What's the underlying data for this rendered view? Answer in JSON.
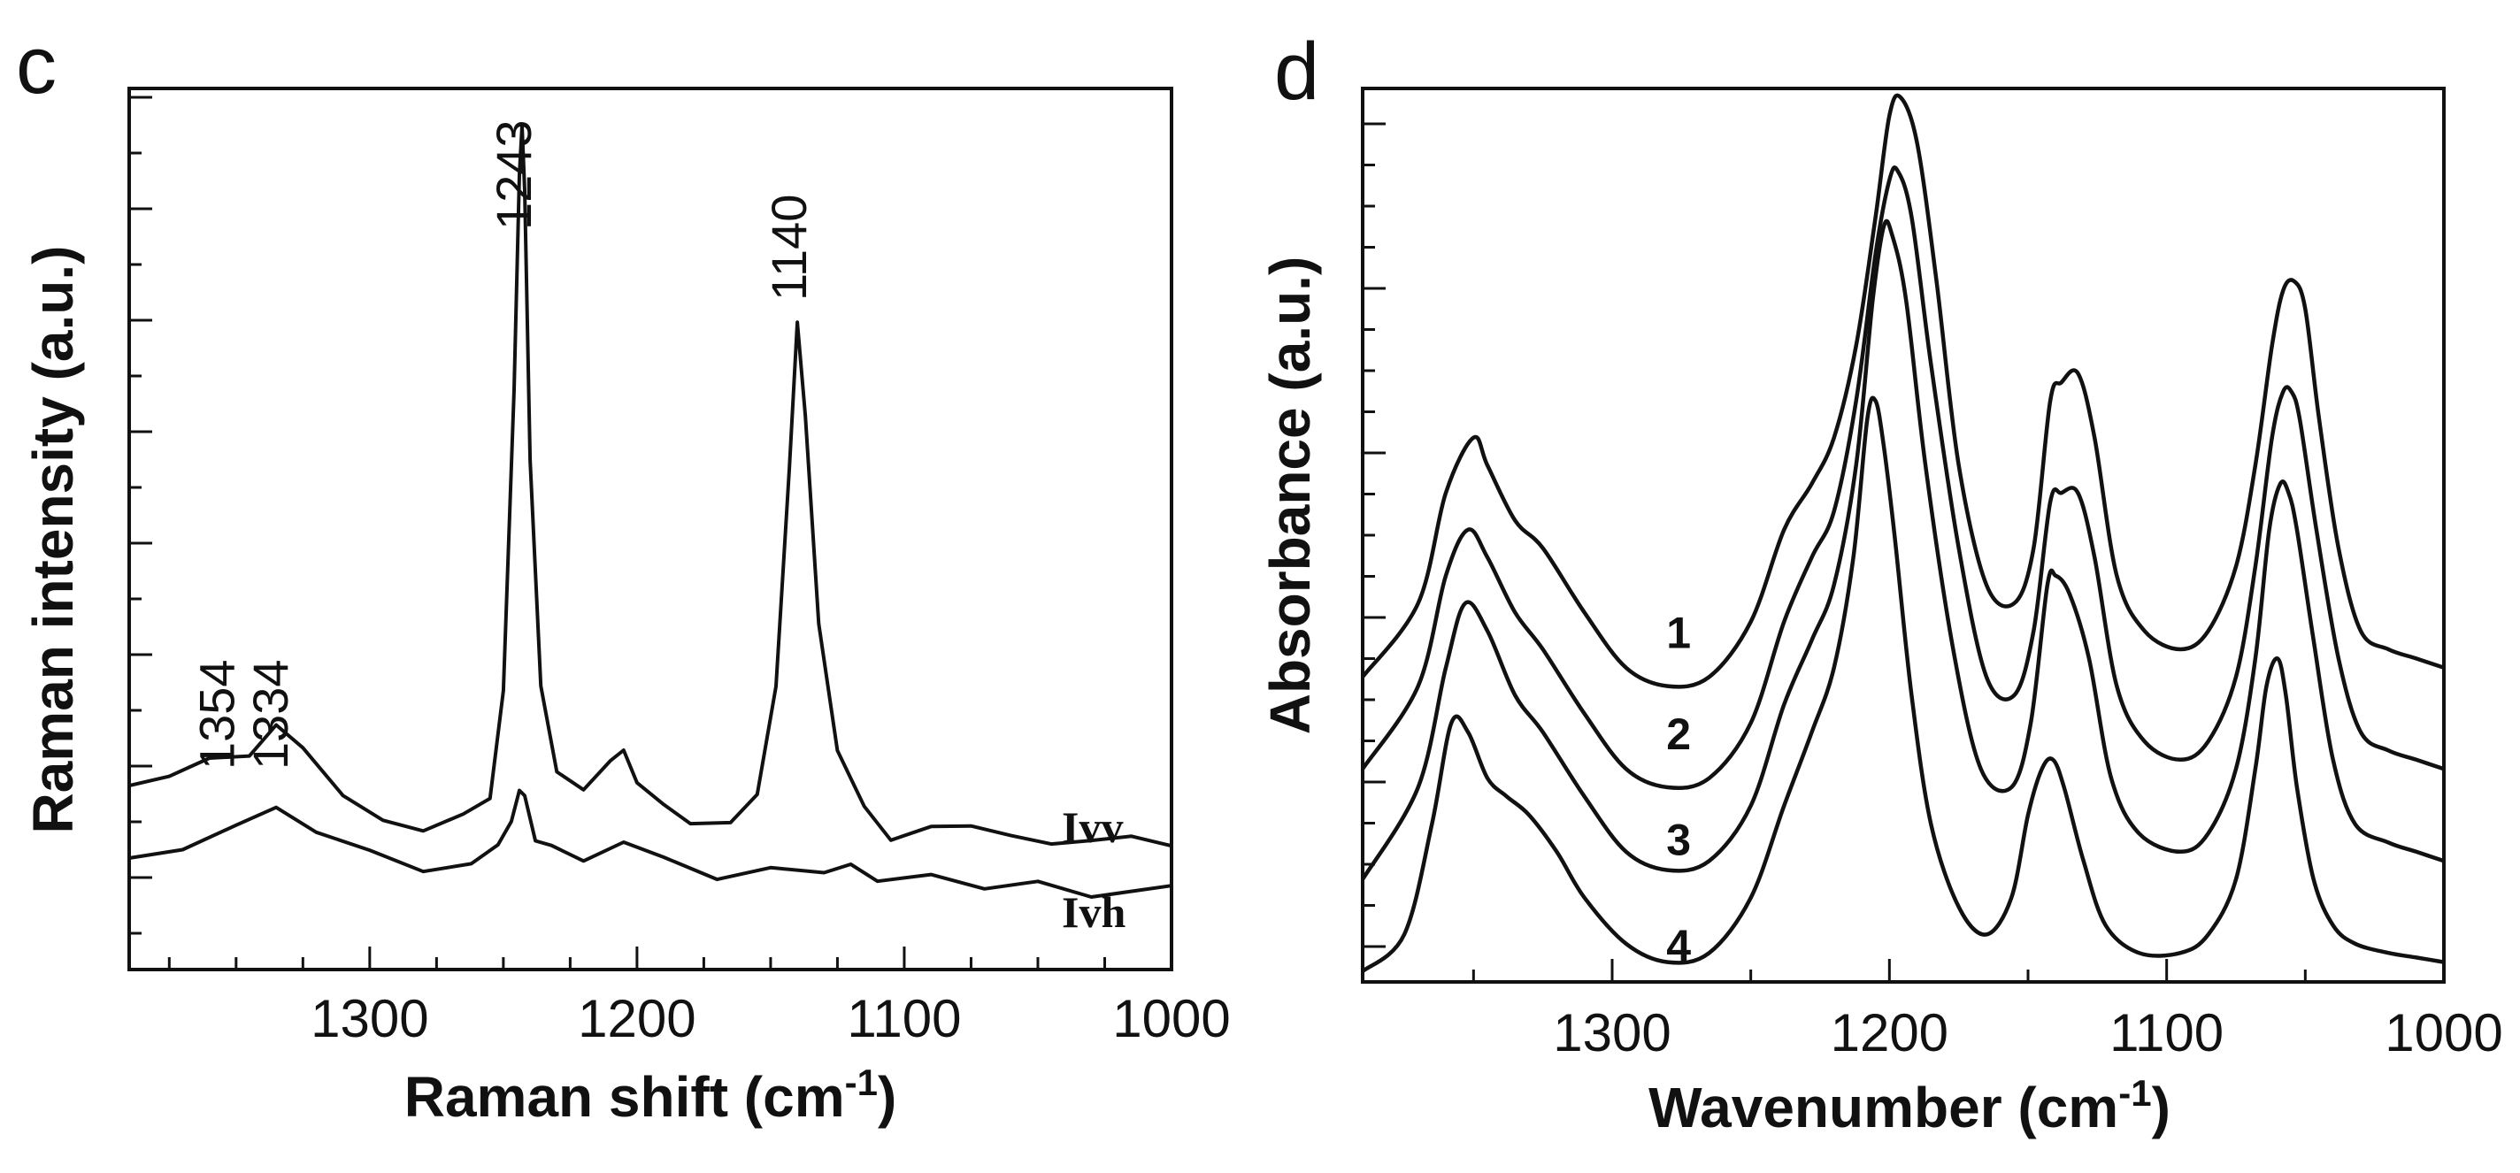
{
  "chart_data": [
    {
      "panel_label": "c",
      "type": "line",
      "xlabel": "Raman shift (cm",
      "xlabel_sup": "-1",
      "xlabel_end": ")",
      "ylabel": "Raman intensity (a.u.)",
      "xlim": [
        1390,
        1000
      ],
      "ylim": [
        0,
        1
      ],
      "xticks": [
        1300,
        1200,
        1100,
        1000
      ],
      "xtick_labels": [
        "1300",
        "1200",
        "1100",
        "1000"
      ],
      "peak_labels": [
        {
          "text": "1354",
          "x": 1354
        },
        {
          "text": "1334",
          "x": 1334
        },
        {
          "text": "1243",
          "x": 1243
        },
        {
          "text": "1140",
          "x": 1140
        }
      ],
      "series": [
        {
          "name": "Ivv",
          "x": [
            1390,
            1375,
            1360,
            1345,
            1335,
            1325,
            1310,
            1295,
            1280,
            1265,
            1255,
            1250,
            1246,
            1244,
            1243,
            1242,
            1240,
            1236,
            1230,
            1220,
            1210,
            1205,
            1200,
            1190,
            1180,
            1165,
            1155,
            1148,
            1143,
            1140,
            1137,
            1132,
            1125,
            1115,
            1105,
            1090,
            1075,
            1060,
            1045,
            1030,
            1015,
            1000
          ],
          "y": [
            0.15,
            0.16,
            0.19,
            0.2,
            0.22,
            0.2,
            0.15,
            0.12,
            0.11,
            0.12,
            0.15,
            0.27,
            0.65,
            0.92,
            0.98,
            0.9,
            0.55,
            0.27,
            0.17,
            0.15,
            0.18,
            0.2,
            0.17,
            0.14,
            0.12,
            0.12,
            0.15,
            0.28,
            0.55,
            0.74,
            0.62,
            0.35,
            0.19,
            0.13,
            0.1,
            0.095,
            0.095,
            0.09,
            0.09,
            0.09,
            0.09,
            0.08
          ]
        },
        {
          "name": "Ivh",
          "x": [
            1390,
            1370,
            1350,
            1335,
            1320,
            1300,
            1280,
            1262,
            1252,
            1247,
            1244,
            1242,
            1238,
            1232,
            1220,
            1205,
            1190,
            1170,
            1150,
            1130,
            1120,
            1110,
            1090,
            1070,
            1050,
            1030,
            1000
          ],
          "y": [
            0.06,
            0.08,
            0.1,
            0.12,
            0.11,
            0.07,
            0.06,
            0.06,
            0.08,
            0.12,
            0.15,
            0.14,
            0.09,
            0.07,
            0.07,
            0.08,
            0.06,
            0.05,
            0.05,
            0.05,
            0.06,
            0.04,
            0.04,
            0.03,
            0.03,
            0.02,
            0.02
          ]
        }
      ]
    },
    {
      "panel_label": "d",
      "type": "line",
      "xlabel": "Wavenumber (cm",
      "xlabel_sup": "-1",
      "xlabel_end": ")",
      "ylabel": "Absorbance (a.u.)",
      "xlim": [
        1390,
        1000
      ],
      "ylim": [
        0,
        1
      ],
      "xticks": [
        1300,
        1200,
        1100,
        1000
      ],
      "xtick_labels": [
        "1300",
        "1200",
        "1100",
        "1000"
      ],
      "series": [
        {
          "name": "1",
          "x": [
            1390,
            1370,
            1360,
            1350,
            1345,
            1335,
            1325,
            1310,
            1295,
            1280,
            1265,
            1250,
            1238,
            1228,
            1220,
            1212,
            1205,
            1200,
            1196,
            1190,
            1183,
            1175,
            1165,
            1155,
            1148,
            1142,
            1138,
            1132,
            1126,
            1118,
            1108,
            1095,
            1085,
            1075,
            1068,
            1062,
            1058,
            1054,
            1050,
            1045,
            1038,
            1030,
            1020,
            1010,
            1000
          ],
          "y": [
            0.32,
            0.4,
            0.52,
            0.58,
            0.55,
            0.49,
            0.46,
            0.39,
            0.33,
            0.31,
            0.32,
            0.38,
            0.48,
            0.53,
            0.58,
            0.68,
            0.82,
            0.93,
            0.95,
            0.9,
            0.75,
            0.55,
            0.42,
            0.4,
            0.46,
            0.62,
            0.64,
            0.65,
            0.58,
            0.43,
            0.37,
            0.35,
            0.37,
            0.44,
            0.55,
            0.68,
            0.74,
            0.75,
            0.72,
            0.6,
            0.46,
            0.37,
            0.35,
            0.34,
            0.33
          ]
        },
        {
          "name": "2",
          "x": [
            1390,
            1370,
            1360,
            1352,
            1345,
            1335,
            1325,
            1310,
            1295,
            1280,
            1265,
            1250,
            1238,
            1228,
            1220,
            1212,
            1205,
            1200,
            1197,
            1192,
            1185,
            1175,
            1165,
            1155,
            1148,
            1142,
            1138,
            1132,
            1126,
            1118,
            1108,
            1095,
            1085,
            1075,
            1068,
            1062,
            1058,
            1055,
            1052,
            1046,
            1038,
            1030,
            1020,
            1010,
            1000
          ],
          "y": [
            0.22,
            0.31,
            0.43,
            0.48,
            0.45,
            0.39,
            0.35,
            0.28,
            0.22,
            0.2,
            0.21,
            0.27,
            0.38,
            0.45,
            0.5,
            0.62,
            0.78,
            0.86,
            0.87,
            0.82,
            0.66,
            0.46,
            0.32,
            0.3,
            0.37,
            0.51,
            0.52,
            0.52,
            0.45,
            0.31,
            0.25,
            0.23,
            0.25,
            0.32,
            0.44,
            0.58,
            0.63,
            0.63,
            0.6,
            0.48,
            0.34,
            0.26,
            0.24,
            0.23,
            0.22
          ]
        },
        {
          "name": "3",
          "x": [
            1390,
            1370,
            1360,
            1353,
            1345,
            1335,
            1325,
            1310,
            1295,
            1280,
            1265,
            1250,
            1238,
            1228,
            1220,
            1212,
            1206,
            1202,
            1199,
            1194,
            1187,
            1177,
            1167,
            1156,
            1149,
            1143,
            1140,
            1135,
            1128,
            1120,
            1110,
            1095,
            1085,
            1075,
            1068,
            1063,
            1059,
            1056,
            1053,
            1047,
            1040,
            1032,
            1020,
            1010,
            1000
          ],
          "y": [
            0.1,
            0.2,
            0.33,
            0.4,
            0.37,
            0.3,
            0.26,
            0.19,
            0.13,
            0.11,
            0.12,
            0.18,
            0.29,
            0.36,
            0.42,
            0.55,
            0.73,
            0.81,
            0.8,
            0.73,
            0.55,
            0.35,
            0.22,
            0.2,
            0.27,
            0.42,
            0.43,
            0.41,
            0.34,
            0.21,
            0.15,
            0.13,
            0.15,
            0.22,
            0.34,
            0.48,
            0.53,
            0.52,
            0.48,
            0.36,
            0.23,
            0.16,
            0.14,
            0.13,
            0.12
          ]
        },
        {
          "name": "4",
          "x": [
            1390,
            1375,
            1365,
            1358,
            1352,
            1345,
            1338,
            1330,
            1320,
            1310,
            1295,
            1280,
            1265,
            1250,
            1238,
            1228,
            1220,
            1213,
            1208,
            1205,
            1202,
            1198,
            1192,
            1185,
            1175,
            1165,
            1156,
            1150,
            1145,
            1141,
            1137,
            1130,
            1122,
            1110,
            1095,
            1085,
            1075,
            1068,
            1064,
            1060,
            1057,
            1053,
            1047,
            1040,
            1032,
            1020,
            1010,
            1000
          ],
          "y": [
            0.0,
            0.04,
            0.16,
            0.27,
            0.26,
            0.21,
            0.19,
            0.17,
            0.13,
            0.08,
            0.03,
            0.01,
            0.02,
            0.08,
            0.18,
            0.26,
            0.33,
            0.45,
            0.6,
            0.62,
            0.57,
            0.47,
            0.3,
            0.16,
            0.07,
            0.04,
            0.08,
            0.17,
            0.22,
            0.23,
            0.2,
            0.12,
            0.05,
            0.02,
            0.02,
            0.04,
            0.1,
            0.22,
            0.31,
            0.34,
            0.3,
            0.2,
            0.1,
            0.05,
            0.03,
            0.02,
            0.015,
            0.01
          ]
        }
      ]
    }
  ]
}
